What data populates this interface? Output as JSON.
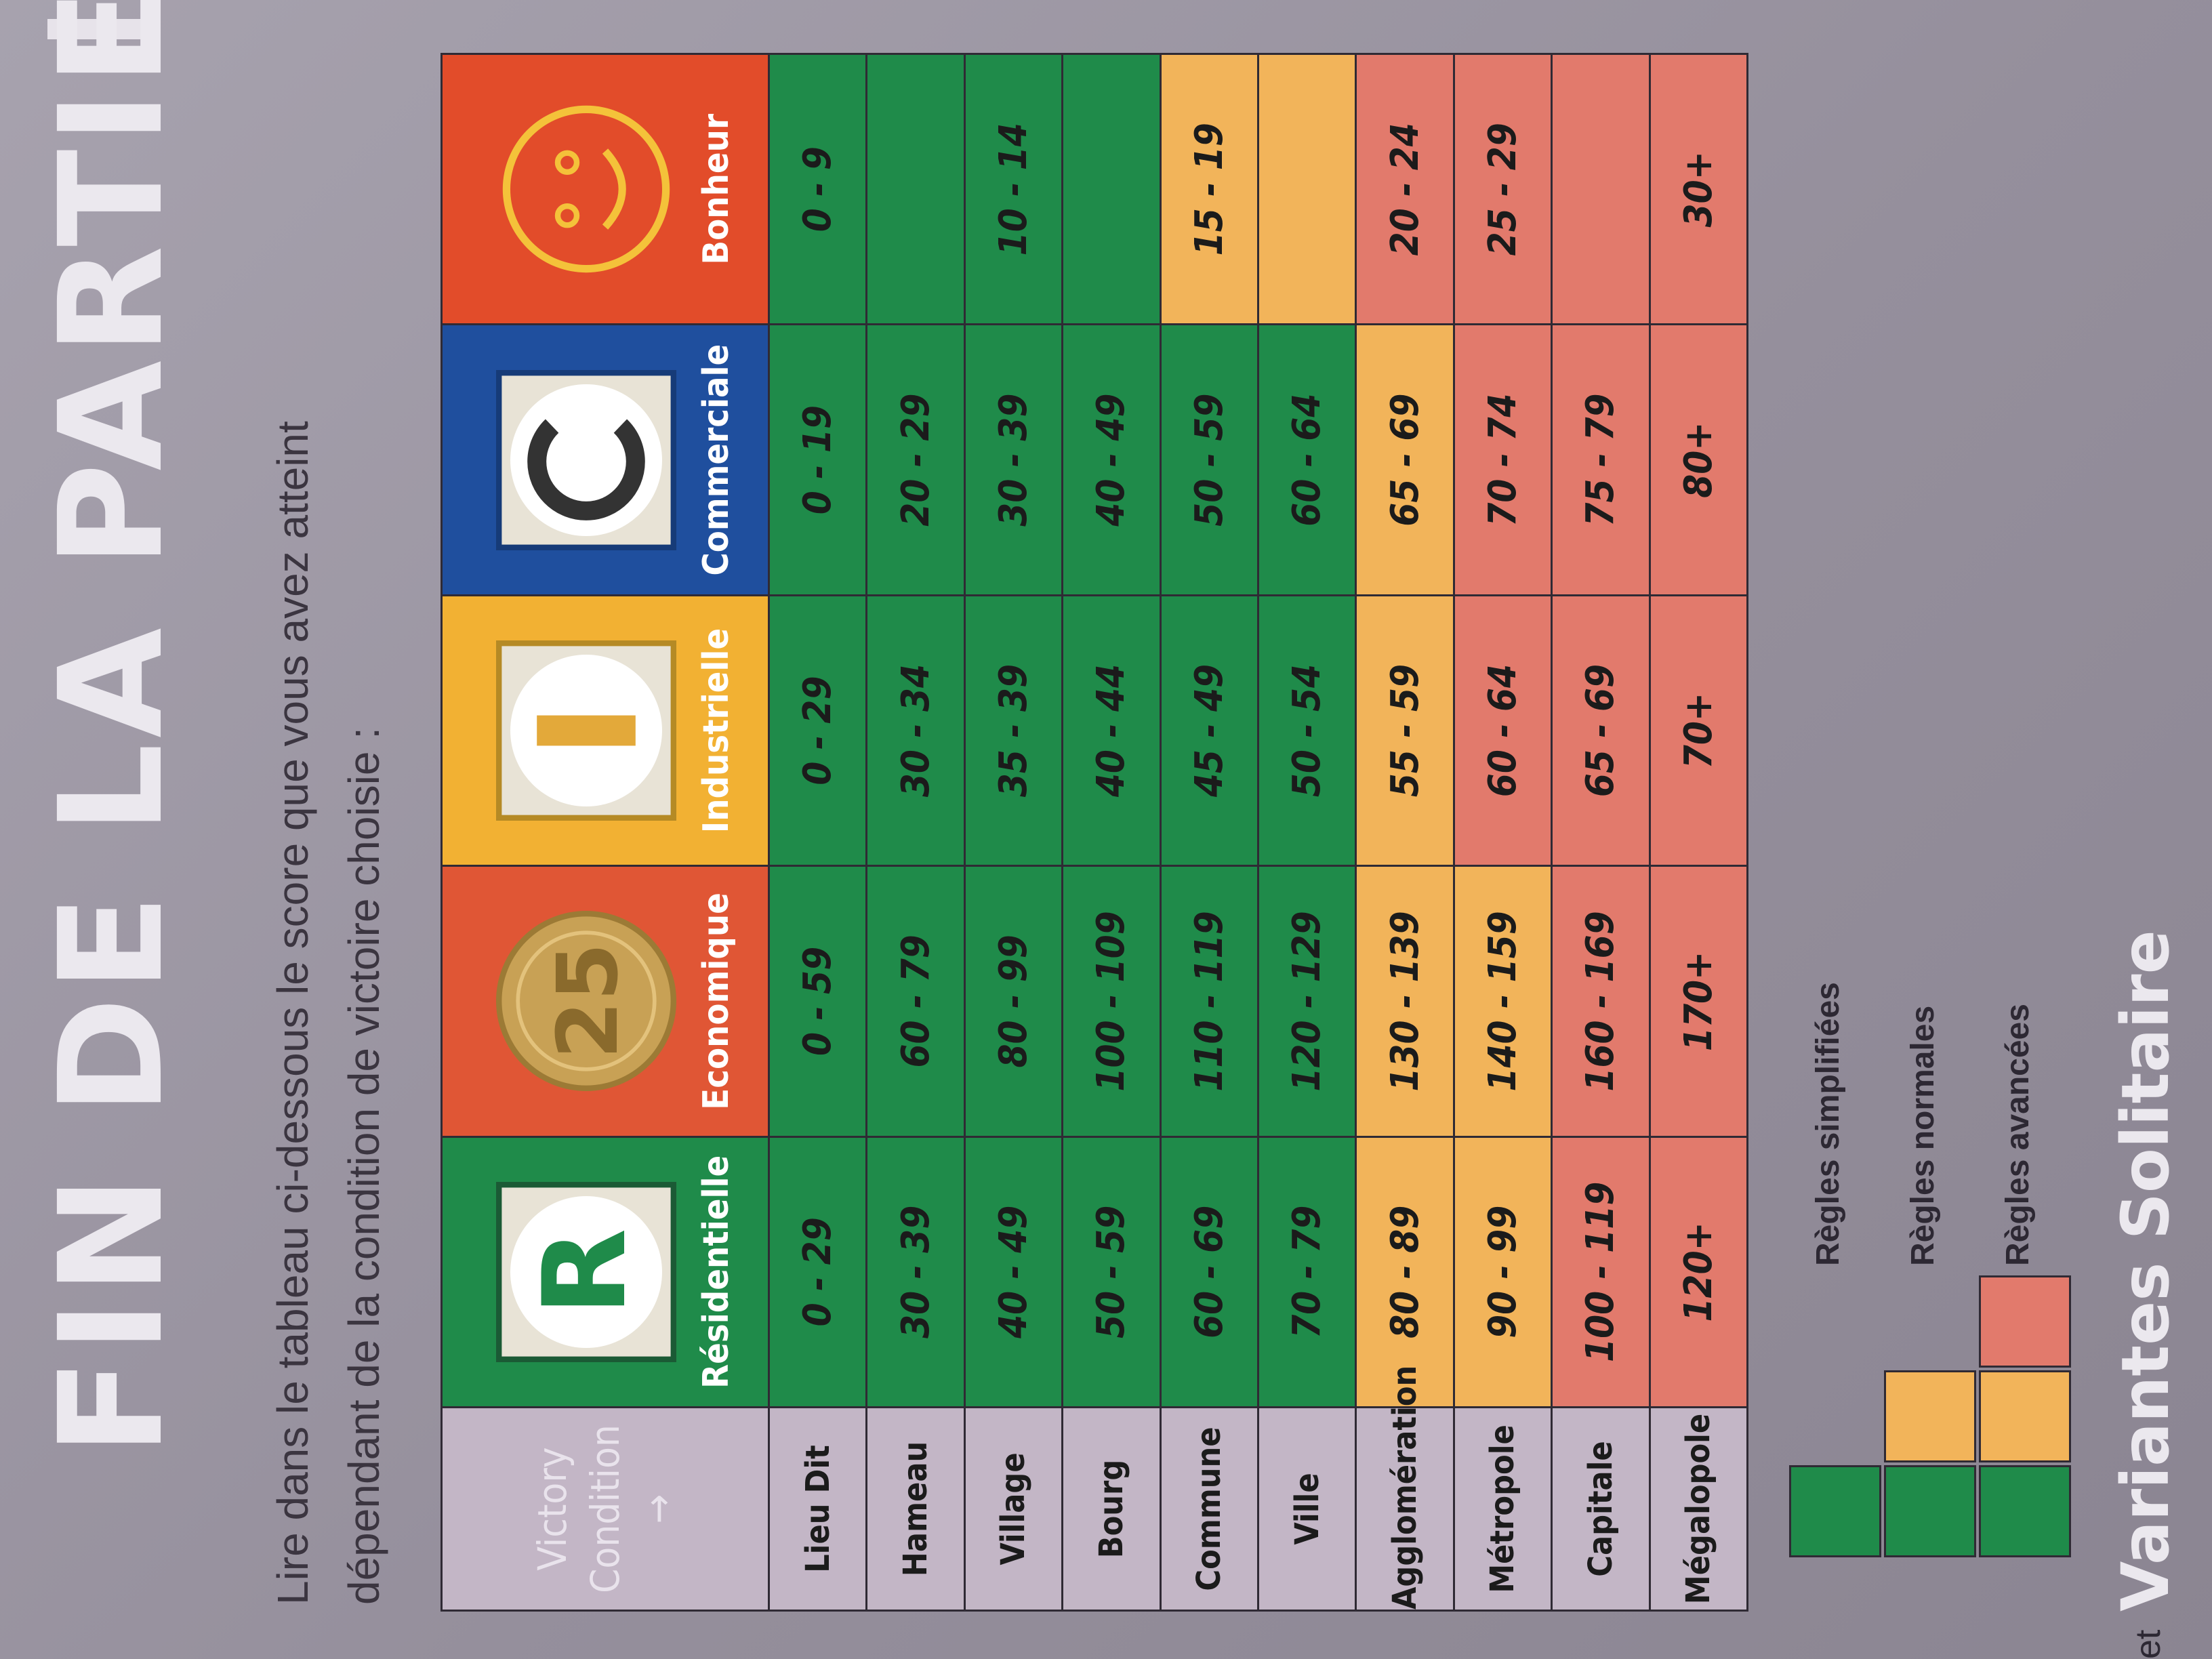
{
  "page": {
    "title": "FIN DE LA PARTIE",
    "intro": "Lire dans le tableau ci-dessous le score que vous avez atteint dépendant de la condition de victoire choisie :"
  },
  "table": {
    "corner_label": "Victory Condition →",
    "columns": [
      {
        "label": "Résidentielle",
        "icon": "residential-R-icon",
        "color": "#1f8b4a"
      },
      {
        "label": "Economique",
        "icon": "coin-25-icon",
        "color": "#e05635"
      },
      {
        "label": "Industrielle",
        "icon": "industrial-I-icon",
        "color": "#f2b133"
      },
      {
        "label": "Commerciale",
        "icon": "commercial-C-icon",
        "color": "#1f4f9e"
      },
      {
        "label": "Bonheur",
        "icon": "smiley-icon",
        "color": "#e24c2a"
      }
    ],
    "rows": [
      {
        "name": "Lieu Dit",
        "cells": [
          "0 - 29",
          "0 - 59",
          "0 - 29",
          "0 - 19",
          "0 - 9"
        ]
      },
      {
        "name": "Hameau",
        "cells": [
          "30 - 39",
          "60 - 79",
          "30 - 34",
          "20 - 29",
          ""
        ]
      },
      {
        "name": "Village",
        "cells": [
          "40 - 49",
          "80 - 99",
          "35 - 39",
          "30 - 39",
          "10 - 14"
        ]
      },
      {
        "name": "Bourg",
        "cells": [
          "50 - 59",
          "100 - 109",
          "40 - 44",
          "40 - 49",
          ""
        ]
      },
      {
        "name": "Commune",
        "cells": [
          "60 - 69",
          "110 - 119",
          "45 - 49",
          "50 - 59",
          "15 - 19"
        ]
      },
      {
        "name": "Ville",
        "cells": [
          "70 - 79",
          "120 - 129",
          "50 - 54",
          "60 - 64",
          ""
        ]
      },
      {
        "name": "Agglomération",
        "cells": [
          "80 - 89",
          "130 - 139",
          "55 - 59",
          "65 - 69",
          "20 - 24"
        ]
      },
      {
        "name": "Métropole",
        "cells": [
          "90 - 99",
          "140 - 159",
          "60 - 64",
          "70 - 74",
          "25 - 29"
        ]
      },
      {
        "name": "Capitale",
        "cells": [
          "100 - 119",
          "160 - 169",
          "65 - 69",
          "75 - 79",
          ""
        ]
      },
      {
        "name": "Mégalopole",
        "cells": [
          "120+",
          "170+",
          "70+",
          "80+",
          "30+"
        ]
      }
    ]
  },
  "legend": [
    {
      "label": "Règles simplifiées",
      "color": "#1f8b4a"
    },
    {
      "label": "Règles normales",
      "color": "#f2b45a"
    },
    {
      "label": "Règles avancées",
      "color": "#e27a6c"
    }
  ],
  "footer": {
    "section_title": "Variantes Solitaire",
    "et": "et"
  }
}
